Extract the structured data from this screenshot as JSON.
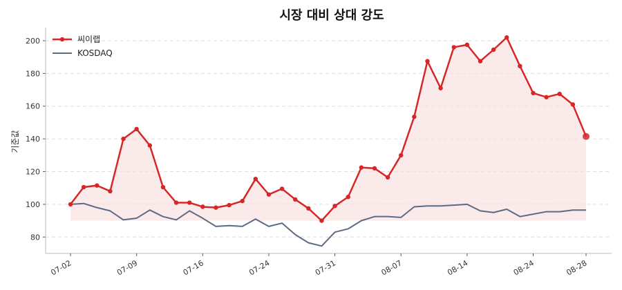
{
  "chart_data": {
    "type": "line",
    "title": "시장 대비 상대 강도",
    "ylabel": "기준값",
    "xlabel": "",
    "ylim": [
      70,
      208
    ],
    "y_ticks": [
      80,
      100,
      120,
      140,
      160,
      180,
      200
    ],
    "x_tick_labels": [
      "07-02",
      "07-09",
      "07-16",
      "07-24",
      "07-31",
      "08-07",
      "08-14",
      "08-24",
      "08-28"
    ],
    "x_tick_indices": [
      0,
      5,
      10,
      15,
      20,
      25,
      30,
      35,
      39
    ],
    "grid": "horizontal-dashed",
    "legend_position": "top-left",
    "fill_baseline": 90,
    "series": [
      {
        "name": "씨이랩",
        "color": "#d62728",
        "markers": true,
        "fill": true,
        "fill_color": "#f8dede",
        "values": [
          100,
          110.5,
          111.5,
          108,
          140,
          146,
          136,
          110.5,
          101,
          101,
          98.5,
          98,
          99.5,
          102,
          115.5,
          106,
          109.5,
          103,
          97.5,
          90,
          99,
          104.5,
          122.5,
          122,
          116.5,
          130,
          153.5,
          187.5,
          171,
          196,
          197.5,
          187.5,
          194.5,
          202,
          184.5,
          168,
          165.5,
          167.5,
          161,
          141.5
        ]
      },
      {
        "name": "KOSDAQ",
        "color": "#5c6a82",
        "markers": false,
        "fill": false,
        "values": [
          100,
          100.5,
          98,
          96,
          90.5,
          91.5,
          96.5,
          92.5,
          90.5,
          96,
          91.5,
          86.5,
          87,
          86.5,
          91,
          86.5,
          88.5,
          81.5,
          76.5,
          74.5,
          83,
          85,
          90,
          92.5,
          92.5,
          92,
          98.5,
          99,
          99,
          99.5,
          100,
          96,
          95,
          97,
          92.5,
          94,
          95.5,
          95.5,
          96.5,
          96.5
        ]
      }
    ]
  }
}
